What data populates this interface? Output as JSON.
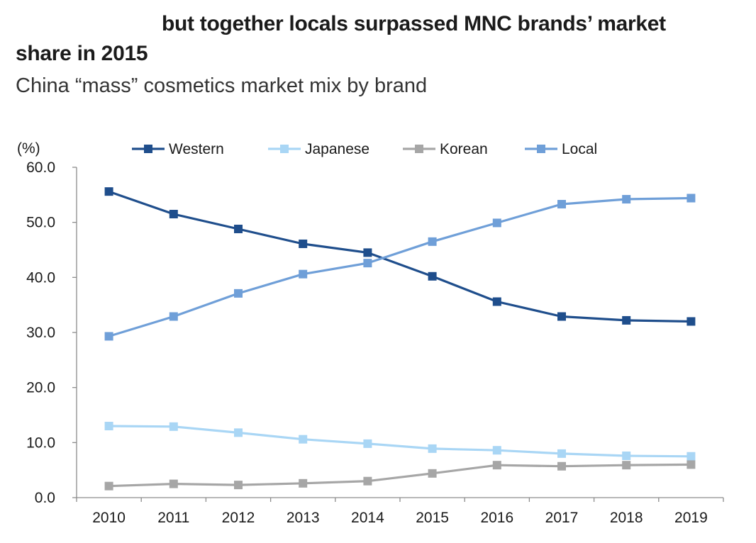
{
  "header": {
    "title_line1": "but together locals surpassed MNC brands’ market",
    "title_line2": "share in 2015",
    "subtitle": "China “mass” cosmetics market mix by brand"
  },
  "chart_data": {
    "type": "line",
    "unit_label": "(%)",
    "categories": [
      "2010",
      "2011",
      "2012",
      "2013",
      "2014",
      "2015",
      "2016",
      "2017",
      "2018",
      "2019"
    ],
    "series": [
      {
        "name": "Western",
        "color": "#1f4e8c",
        "values": [
          55.6,
          51.5,
          48.8,
          46.1,
          44.5,
          40.2,
          35.6,
          32.9,
          32.2,
          32.0
        ]
      },
      {
        "name": "Japanese",
        "color": "#a9d6f5",
        "values": [
          13.0,
          12.9,
          11.8,
          10.6,
          9.8,
          8.9,
          8.6,
          8.0,
          7.6,
          7.5
        ]
      },
      {
        "name": "Korean",
        "color": "#a6a6a6",
        "values": [
          2.1,
          2.5,
          2.3,
          2.6,
          3.0,
          4.4,
          5.9,
          5.7,
          5.9,
          6.0
        ]
      },
      {
        "name": "Local",
        "color": "#6f9fd8",
        "values": [
          29.3,
          32.9,
          37.1,
          40.6,
          42.6,
          46.5,
          49.9,
          53.3,
          54.2,
          54.4
        ]
      }
    ],
    "ylim": [
      0,
      60
    ],
    "yticks": [
      "0.0",
      "10.0",
      "20.0",
      "30.0",
      "40.0",
      "50.0",
      "60.0"
    ],
    "grid": false,
    "legend_position": "top"
  }
}
